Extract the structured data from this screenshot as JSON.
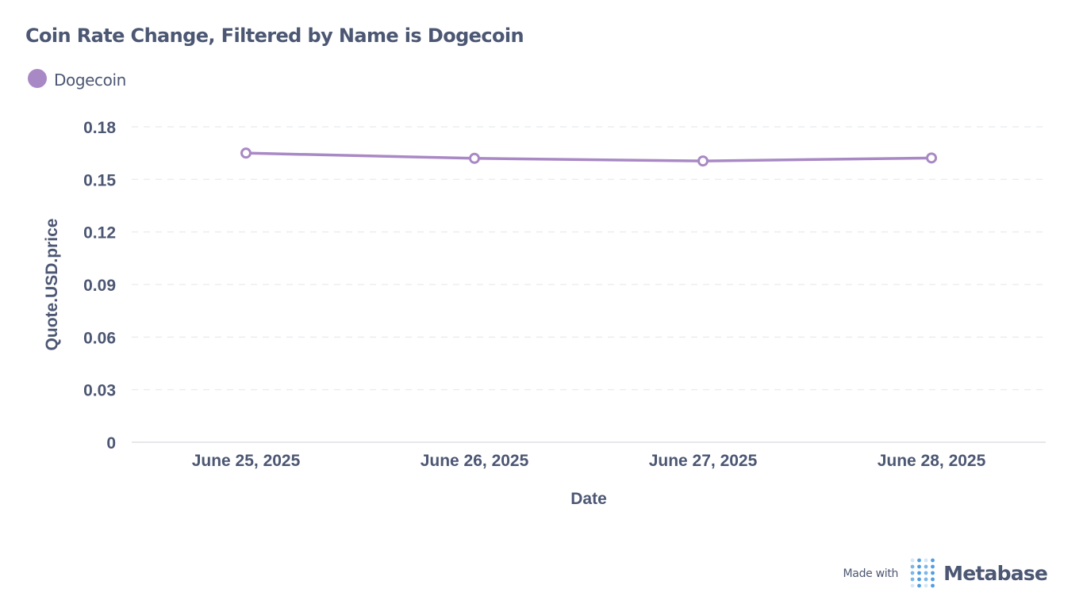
{
  "title": "Coin Rate Change, Filtered by Name is Dogecoin",
  "legend": {
    "items": [
      {
        "label": "Dogecoin",
        "color": "#a989c5"
      }
    ]
  },
  "chart_data": {
    "type": "line",
    "xlabel": "Date",
    "ylabel": "Quote.USD.price",
    "categories": [
      "June 25, 2025",
      "June 26, 2025",
      "June 27, 2025",
      "June 28, 2025"
    ],
    "yticks": [
      "0",
      "0.03",
      "0.06",
      "0.09",
      "0.12",
      "0.15",
      "0.18"
    ],
    "ylim": [
      0,
      0.18
    ],
    "grid": true,
    "legend_position": "top-left",
    "series": [
      {
        "name": "Dogecoin",
        "color": "#a989c5",
        "values": [
          0.165,
          0.162,
          0.1605,
          0.1622
        ]
      }
    ]
  },
  "footer": {
    "made_with": "Made with",
    "brand": "Metabase",
    "logo_icon": "metabase-logo-icon",
    "logo_color": "#509ee3"
  }
}
